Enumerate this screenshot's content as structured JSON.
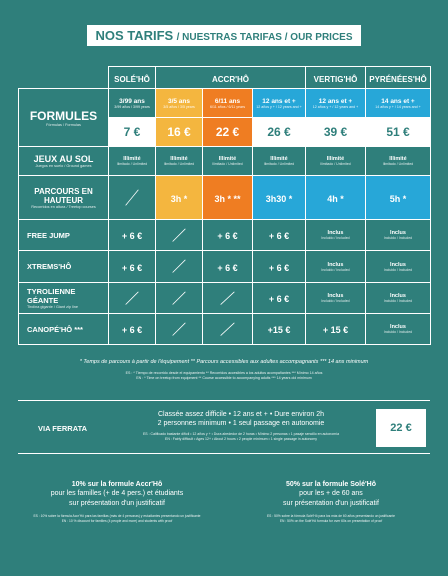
{
  "header": {
    "title_main": "NOS TARIFS",
    "title_rest": "/ NUESTRAS TARIFAS / OUR PRICES"
  },
  "table": {
    "formules": {
      "label": "FORMULES",
      "sub": "Fórmulas / Formulas"
    },
    "groups": {
      "solo": "SOLÉ'HÔ",
      "accro": "ACCR'HÔ",
      "vertig": "VERTIG'HÔ",
      "pyrenees": "PYRÉNÉES'HÔ"
    },
    "columns": [
      {
        "age": "3/99 ans",
        "sub": "3/99 años / 3/99 years",
        "price": "7 €"
      },
      {
        "age": "3/5 ans",
        "sub": "3/5 años / 3/5 years",
        "price": "16 €"
      },
      {
        "age": "6/11 ans",
        "sub": "6/11 años / 6/11 years",
        "price": "22 €"
      },
      {
        "age": "12 ans et +",
        "sub": "12 años y + / 12 years and +",
        "price": "26 €"
      },
      {
        "age": "12 ans et +",
        "sub": "12 años y + / 12 years and +",
        "price": "39 €"
      },
      {
        "age": "14 ans et +",
        "sub": "14 años y + / 14 years and +",
        "price": "51 €"
      }
    ],
    "jeux": {
      "label": "JEUX AU SOL",
      "sub": "Juegos en suelo / Ground games",
      "cell": "Illimité",
      "cell_sub": "Ilimitado / Unlimited"
    },
    "parcours": {
      "label": "PARCOURS EN HAUTEUR",
      "sub": "Recorridos en altura / Treetop courses",
      "values": [
        "3h *",
        "3h * **",
        "3h30 *",
        "4h *",
        "5h *"
      ]
    },
    "inclus": "Inclus",
    "inclus_sub": "Incluido / Included",
    "free_jump": {
      "label": "FREE JUMP",
      "values": [
        "+ 6 €",
        "+ 6 €",
        "+ 6 €"
      ]
    },
    "xtrems": {
      "label": "XTREMS'HÔ",
      "values": [
        "+ 6 €",
        "+ 6 €",
        "+ 6 €"
      ]
    },
    "tyrolienne": {
      "label": "TYROLIENNE GÉANTE",
      "sub": "Tirolina gigante / Giant zip line",
      "value": "+ 6 €"
    },
    "canope": {
      "label": "CANOPÉ'HÔ ***",
      "values": [
        "+ 6 €",
        "+15 €",
        "+ 15 €"
      ]
    }
  },
  "notes": {
    "main": "* Temps de parcours à partir de l'équipement   ** Parcours accessibles aux adultes accompagnants   *** 14 ans minimum",
    "es": "ES : * Tiempo de recorrido desde el equipamiento   ** Recorridos accesibles a los adultos acompañantes   *** Mínimo 14 años",
    "en": "EN : * Time on treetop from equipment   ** Course accessible to accompanying adults   *** 14 years old minimum"
  },
  "via_ferrata": {
    "label": "VIA FERRATA",
    "line1": "Classée assez difficile • 12 ans et + • Dure environ 2h",
    "line2": "2 personnes minimum • 1 seul passage en autonomie",
    "es": "ES : Calificado bastante difícil • 12 años y + • Dura alrededor de 2 horas • Mínimo 2 personas • 1 pasaje sencillo en autonomía",
    "en": "EN : Fairly difficult • Ages 12+ • About 2 hours • 2 people minimum • 1 single passage in autonomy",
    "price": "22 €"
  },
  "promos": [
    {
      "l1": "10% sur la formule Accr'Hô",
      "l2": "pour les familles (+ de 4 pers.) et étudiants",
      "l3": "sur présentation d'un justificatif",
      "es": "ES : 10% sobre la fórmula Accr'Hô para las familias (más de 4 personas) y estudiantes presentando un justificante",
      "en": "EN : 10 % discount for families (4 people and more) and students with proof"
    },
    {
      "l1": "50% sur la formule Solé'Hô",
      "l2": "pour les + de 60 ans",
      "l3": "sur présentation d'un justificatif",
      "es": "ES : 50% sobre la fórmula Solé'Hô para los más de 60 años presentando un justificante",
      "en": "EN : 50% on the Solé'Hô formula for over 60s on presentation of proof"
    }
  ]
}
